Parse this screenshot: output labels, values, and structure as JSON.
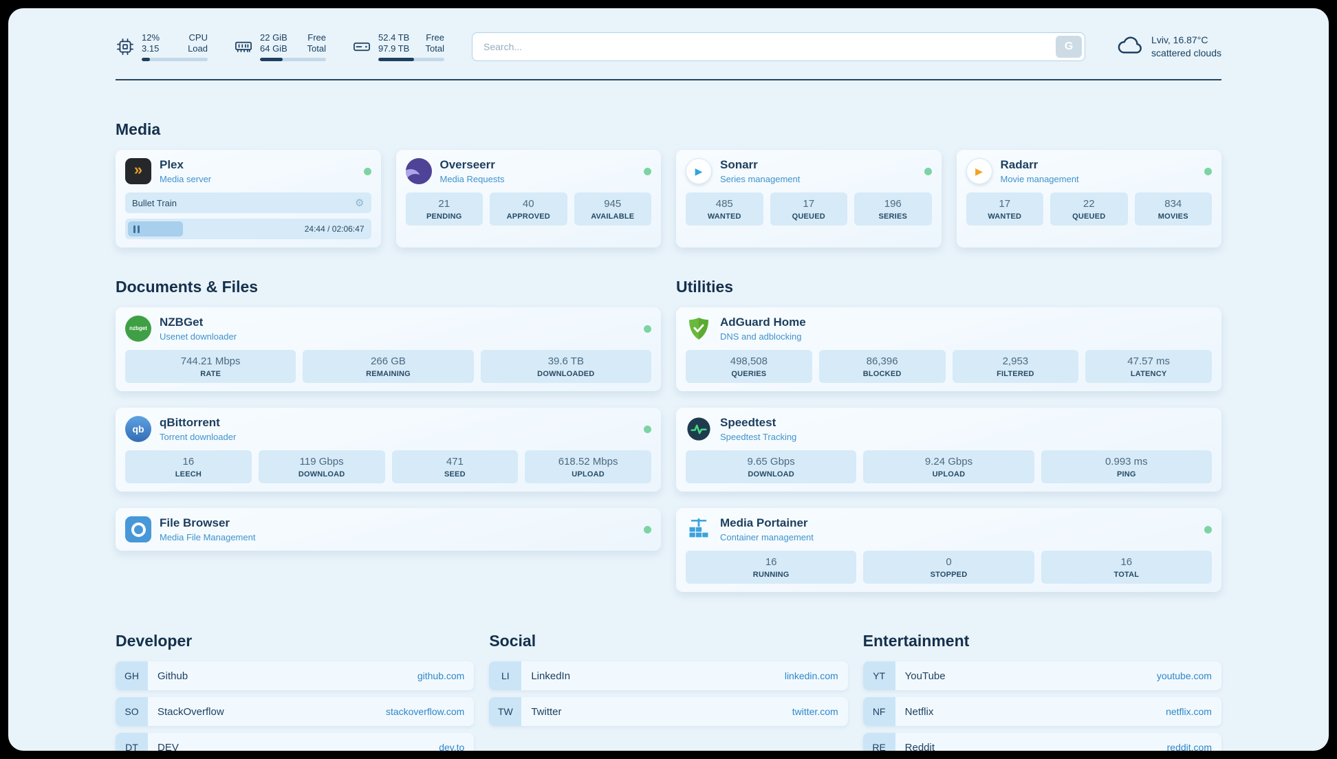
{
  "colors": {
    "page_background": "#e9f3fa",
    "status_online": "#7cd4a3",
    "link": "#2f86c8",
    "accent_navy": "#1d3f60"
  },
  "icons": {
    "plex_glyph": "»",
    "sonarr_glyph": "▶",
    "radarr_glyph": "▶",
    "nzbget_label": "nzbget",
    "qbittorrent_label": "qb",
    "gear": "⚙"
  },
  "header": {
    "cpu": {
      "value_top": "12%",
      "value_bottom": "3.15",
      "label_top": "CPU",
      "label_bottom": "Load",
      "percent": 12
    },
    "ram": {
      "value_top": "22 GiB",
      "value_bottom": "64 GiB",
      "label_top": "Free",
      "label_bottom": "Total",
      "percent": 34
    },
    "disk": {
      "value_top": "52.4 TB",
      "value_bottom": "97.9 TB",
      "label_top": "Free",
      "label_bottom": "Total",
      "percent": 54
    },
    "search": {
      "placeholder": "Search...",
      "button_label": "G"
    },
    "weather": {
      "location": "Lviv, 16.87°C",
      "condition": "scattered clouds"
    }
  },
  "sections": {
    "media": {
      "title": "Media",
      "cards": [
        {
          "name": "Plex",
          "subtitle": "Media server",
          "status": "online",
          "player": {
            "track": "Bullet Train",
            "time": "24:44 / 02:06:47",
            "percent": 20
          }
        },
        {
          "name": "Overseerr",
          "subtitle": "Media Requests",
          "status": "online",
          "stats": [
            {
              "value": "21",
              "label": "PENDING"
            },
            {
              "value": "40",
              "label": "APPROVED"
            },
            {
              "value": "945",
              "label": "AVAILABLE"
            }
          ]
        },
        {
          "name": "Sonarr",
          "subtitle": "Series management",
          "status": "online",
          "stats": [
            {
              "value": "485",
              "label": "WANTED"
            },
            {
              "value": "17",
              "label": "QUEUED"
            },
            {
              "value": "196",
              "label": "SERIES"
            }
          ]
        },
        {
          "name": "Radarr",
          "subtitle": "Movie management",
          "status": "online",
          "stats": [
            {
              "value": "17",
              "label": "WANTED"
            },
            {
              "value": "22",
              "label": "QUEUED"
            },
            {
              "value": "834",
              "label": "MOVIES"
            }
          ]
        }
      ]
    },
    "documents": {
      "title": "Documents & Files",
      "cards": [
        {
          "name": "NZBGet",
          "subtitle": "Usenet downloader",
          "status": "online",
          "stats": [
            {
              "value": "744.21 Mbps",
              "label": "RATE"
            },
            {
              "value": "266 GB",
              "label": "REMAINING"
            },
            {
              "value": "39.6 TB",
              "label": "DOWNLOADED"
            }
          ]
        },
        {
          "name": "qBittorrent",
          "subtitle": "Torrent downloader",
          "status": "online",
          "stats": [
            {
              "value": "16",
              "label": "LEECH"
            },
            {
              "value": "119 Gbps",
              "label": "DOWNLOAD"
            },
            {
              "value": "471",
              "label": "SEED"
            },
            {
              "value": "618.52 Mbps",
              "label": "UPLOAD"
            }
          ]
        },
        {
          "name": "File Browser",
          "subtitle": "Media File Management",
          "status": "online",
          "stats": []
        }
      ]
    },
    "utilities": {
      "title": "Utilities",
      "cards": [
        {
          "name": "AdGuard Home",
          "subtitle": "DNS and adblocking",
          "stats": [
            {
              "value": "498,508",
              "label": "QUERIES"
            },
            {
              "value": "86,396",
              "label": "BLOCKED"
            },
            {
              "value": "2,953",
              "label": "FILTERED"
            },
            {
              "value": "47.57 ms",
              "label": "LATENCY"
            }
          ]
        },
        {
          "name": "Speedtest",
          "subtitle": "Speedtest Tracking",
          "stats": [
            {
              "value": "9.65 Gbps",
              "label": "DOWNLOAD"
            },
            {
              "value": "9.24 Gbps",
              "label": "UPLOAD"
            },
            {
              "value": "0.993 ms",
              "label": "PING"
            }
          ]
        },
        {
          "name": "Media Portainer",
          "subtitle": "Container management",
          "status": "online",
          "stats": [
            {
              "value": "16",
              "label": "RUNNING"
            },
            {
              "value": "0",
              "label": "STOPPED"
            },
            {
              "value": "16",
              "label": "TOTAL"
            }
          ]
        }
      ]
    },
    "bookmarks": {
      "groups": [
        {
          "title": "Developer",
          "items": [
            {
              "abbr": "GH",
              "name": "Github",
              "url": "github.com"
            },
            {
              "abbr": "SO",
              "name": "StackOverflow",
              "url": "stackoverflow.com"
            },
            {
              "abbr": "DT",
              "name": "DEV",
              "url": "dev.to"
            }
          ]
        },
        {
          "title": "Social",
          "items": [
            {
              "abbr": "LI",
              "name": "LinkedIn",
              "url": "linkedin.com"
            },
            {
              "abbr": "TW",
              "name": "Twitter",
              "url": "twitter.com"
            }
          ]
        },
        {
          "title": "Entertainment",
          "items": [
            {
              "abbr": "YT",
              "name": "YouTube",
              "url": "youtube.com"
            },
            {
              "abbr": "NF",
              "name": "Netflix",
              "url": "netflix.com"
            },
            {
              "abbr": "RE",
              "name": "Reddit",
              "url": "reddit.com"
            }
          ]
        }
      ]
    }
  }
}
